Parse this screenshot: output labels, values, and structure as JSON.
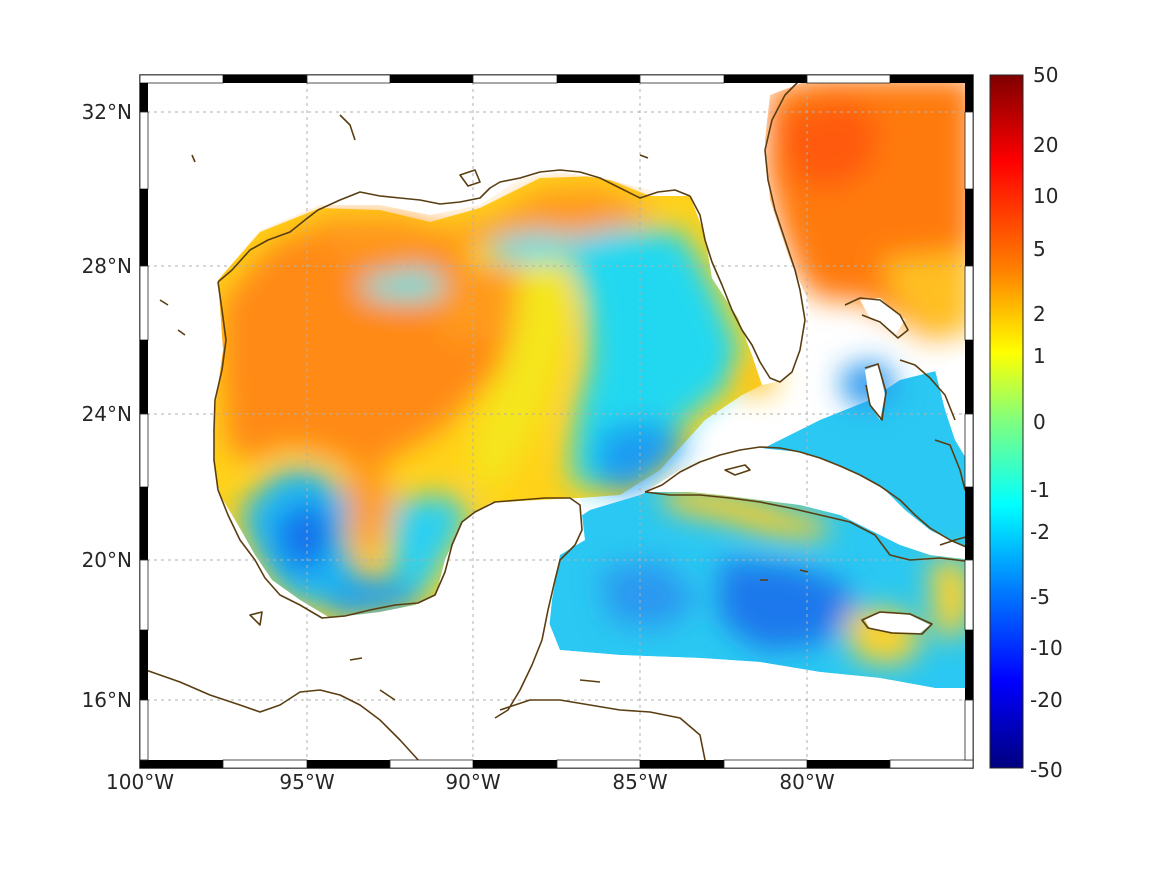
{
  "map": {
    "region": "Gulf of Mexico and Caribbean",
    "lon_range": [
      -100,
      -75
    ],
    "lat_range": [
      14.5,
      33
    ],
    "grid": true,
    "frame_style": "alternating black-white border",
    "coastline_color": "#5a3e12",
    "no_data_color": "#ffffff",
    "lon_ticks": [
      {
        "value": -100,
        "label": "100°W"
      },
      {
        "value": -95,
        "label": "95°W"
      },
      {
        "value": -90,
        "label": "90°W"
      },
      {
        "value": -85,
        "label": "85°W"
      },
      {
        "value": -80,
        "label": "80°W"
      }
    ],
    "lat_ticks": [
      {
        "value": 32,
        "label": "32°N"
      },
      {
        "value": 28,
        "label": "28°N"
      },
      {
        "value": 24,
        "label": "24°N"
      },
      {
        "value": 20,
        "label": "20°N"
      },
      {
        "value": 16,
        "label": "16°N"
      }
    ]
  },
  "colorbar": {
    "colormap": "jet",
    "scale": "symmetric log",
    "ticks": [
      "50",
      "20",
      "10",
      "5",
      "2",
      "1",
      "0",
      "-1",
      "-2",
      "-5",
      "-10",
      "-20",
      "-50"
    ],
    "colors": [
      "#7f0000",
      "#ff0000",
      "#ff7f00",
      "#ffff00",
      "#7fff7f",
      "#00ffff",
      "#007fff",
      "#0000ff",
      "#00007f"
    ]
  }
}
